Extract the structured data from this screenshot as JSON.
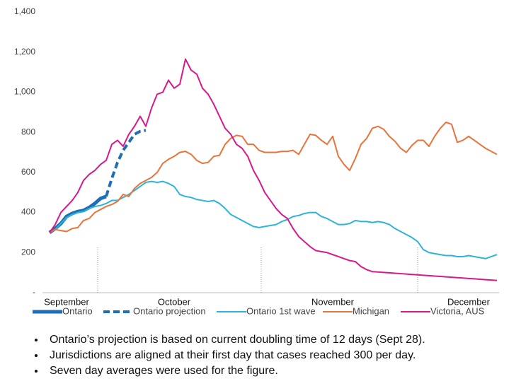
{
  "chart_data": {
    "type": "line",
    "categories": [
      null,
      null,
      null,
      "September",
      null,
      null,
      null,
      null,
      null,
      null,
      null,
      null,
      null,
      null,
      null,
      null,
      null,
      null,
      null,
      null,
      null,
      null,
      "October",
      null,
      null,
      null,
      null,
      null,
      null,
      null,
      null,
      null,
      null,
      null,
      null,
      null,
      null,
      null,
      null,
      null,
      null,
      null,
      null,
      null,
      null,
      null,
      null,
      null,
      null,
      null,
      "November",
      null,
      null,
      null,
      null,
      null,
      null,
      null,
      null,
      null,
      null,
      null,
      null,
      null,
      null,
      null,
      null,
      null,
      null,
      null,
      null,
      null,
      null,
      null,
      "December",
      null,
      null,
      null,
      null,
      null
    ],
    "ylim": [
      0,
      1400
    ],
    "yticks": [
      {
        "value": 0,
        "label": "-"
      },
      200,
      400,
      600,
      800,
      {
        "value": 1000,
        "label": "1,000"
      },
      {
        "value": 1200,
        "label": "1,200"
      },
      {
        "value": 1400,
        "label": "1,400"
      }
    ],
    "grid": false,
    "legend": "bottom",
    "series": [
      {
        "name": "Ontario",
        "color": "#1f6db5",
        "width": 5,
        "dashed": false,
        "values": [
          300,
          320,
          345,
          380,
          395,
          405,
          410,
          425,
          445,
          470,
          480,
          null,
          null,
          null,
          null,
          null,
          null,
          null,
          null,
          null,
          null,
          null,
          null,
          null,
          null,
          null,
          null,
          null,
          null,
          null,
          null,
          null,
          null,
          null,
          null,
          null,
          null,
          null,
          null,
          null,
          null,
          null,
          null,
          null,
          null,
          null,
          null,
          null,
          null,
          null,
          null,
          null,
          null,
          null,
          null,
          null,
          null,
          null,
          null,
          null,
          null,
          null,
          null,
          null,
          null,
          null,
          null,
          null,
          null,
          null,
          null,
          null,
          null,
          null,
          null,
          null,
          null,
          null,
          null,
          null
        ]
      },
      {
        "name": "Ontario projection",
        "color": "#1f6db5",
        "width": 4,
        "dashed": true,
        "values": [
          null,
          null,
          null,
          null,
          null,
          null,
          null,
          null,
          null,
          null,
          480,
          570,
          650,
          710,
          750,
          790,
          805,
          810,
          null,
          null,
          null,
          null,
          null,
          null,
          null,
          null,
          null,
          null,
          null,
          null,
          null,
          null,
          null,
          null,
          null,
          null,
          null,
          null,
          null,
          null,
          null,
          null,
          null,
          null,
          null,
          null,
          null,
          null,
          null,
          null,
          null,
          null,
          null,
          null,
          null,
          null,
          null,
          null,
          null,
          null,
          null,
          null,
          null,
          null,
          null,
          null,
          null,
          null,
          null,
          null,
          null,
          null,
          null,
          null,
          null,
          null,
          null,
          null,
          null,
          null
        ]
      },
      {
        "name": "Ontario 1st wave",
        "color": "#2fb3d9",
        "width": 2,
        "dashed": false,
        "values": [
          300,
          315,
          345,
          375,
          390,
          400,
          405,
          420,
          430,
          435,
          445,
          460,
          460,
          475,
          490,
          510,
          530,
          550,
          555,
          550,
          555,
          545,
          530,
          490,
          480,
          475,
          465,
          460,
          455,
          460,
          445,
          420,
          390,
          375,
          360,
          345,
          330,
          325,
          330,
          335,
          340,
          355,
          365,
          380,
          385,
          395,
          400,
          400,
          380,
          370,
          355,
          340,
          340,
          345,
          360,
          355,
          355,
          350,
          355,
          350,
          340,
          320,
          305,
          290,
          275,
          255,
          215,
          200,
          195,
          190,
          185,
          185,
          180,
          180,
          185,
          180,
          175,
          170,
          180,
          190
        ]
      },
      {
        "name": "Michigan",
        "color": "#e8743b",
        "width": 2,
        "dashed": false,
        "values": [
          300,
          315,
          310,
          305,
          320,
          325,
          360,
          370,
          400,
          415,
          430,
          440,
          455,
          490,
          480,
          520,
          545,
          560,
          575,
          600,
          645,
          665,
          680,
          700,
          705,
          690,
          660,
          645,
          650,
          680,
          685,
          740,
          770,
          785,
          780,
          740,
          740,
          710,
          700,
          700,
          700,
          705,
          705,
          710,
          690,
          740,
          790,
          785,
          760,
          740,
          780,
          680,
          640,
          610,
          670,
          740,
          770,
          820,
          830,
          815,
          780,
          755,
          720,
          700,
          735,
          760,
          760,
          730,
          780,
          820,
          850,
          840,
          750,
          760,
          780,
          760,
          740,
          720,
          705,
          690
        ]
      },
      {
        "name": "Victoria, AUS",
        "color": "#d6198b",
        "width": 2,
        "dashed": false,
        "values": [
          300,
          340,
          400,
          430,
          460,
          500,
          560,
          590,
          610,
          640,
          660,
          740,
          760,
          730,
          790,
          830,
          880,
          830,
          920,
          990,
          1000,
          1060,
          1020,
          1040,
          1165,
          1110,
          1090,
          1020,
          990,
          940,
          880,
          820,
          790,
          740,
          720,
          680,
          610,
          560,
          500,
          460,
          420,
          390,
          370,
          320,
          280,
          255,
          230,
          210,
          205,
          200,
          190,
          180,
          170,
          160,
          155,
          130,
          115,
          105,
          103,
          101,
          99,
          97,
          95,
          93,
          91,
          89,
          87,
          85,
          83,
          81,
          79,
          77,
          75,
          73,
          71,
          69,
          67,
          65,
          63,
          61
        ]
      }
    ]
  },
  "notes": [
    "Ontario’s projection is based on current doubling time of 12 days (Sept 28).",
    "Jurisdictions are aligned at their first day that cases reached 300 per day.",
    "Seven day averages were used for the figure."
  ]
}
